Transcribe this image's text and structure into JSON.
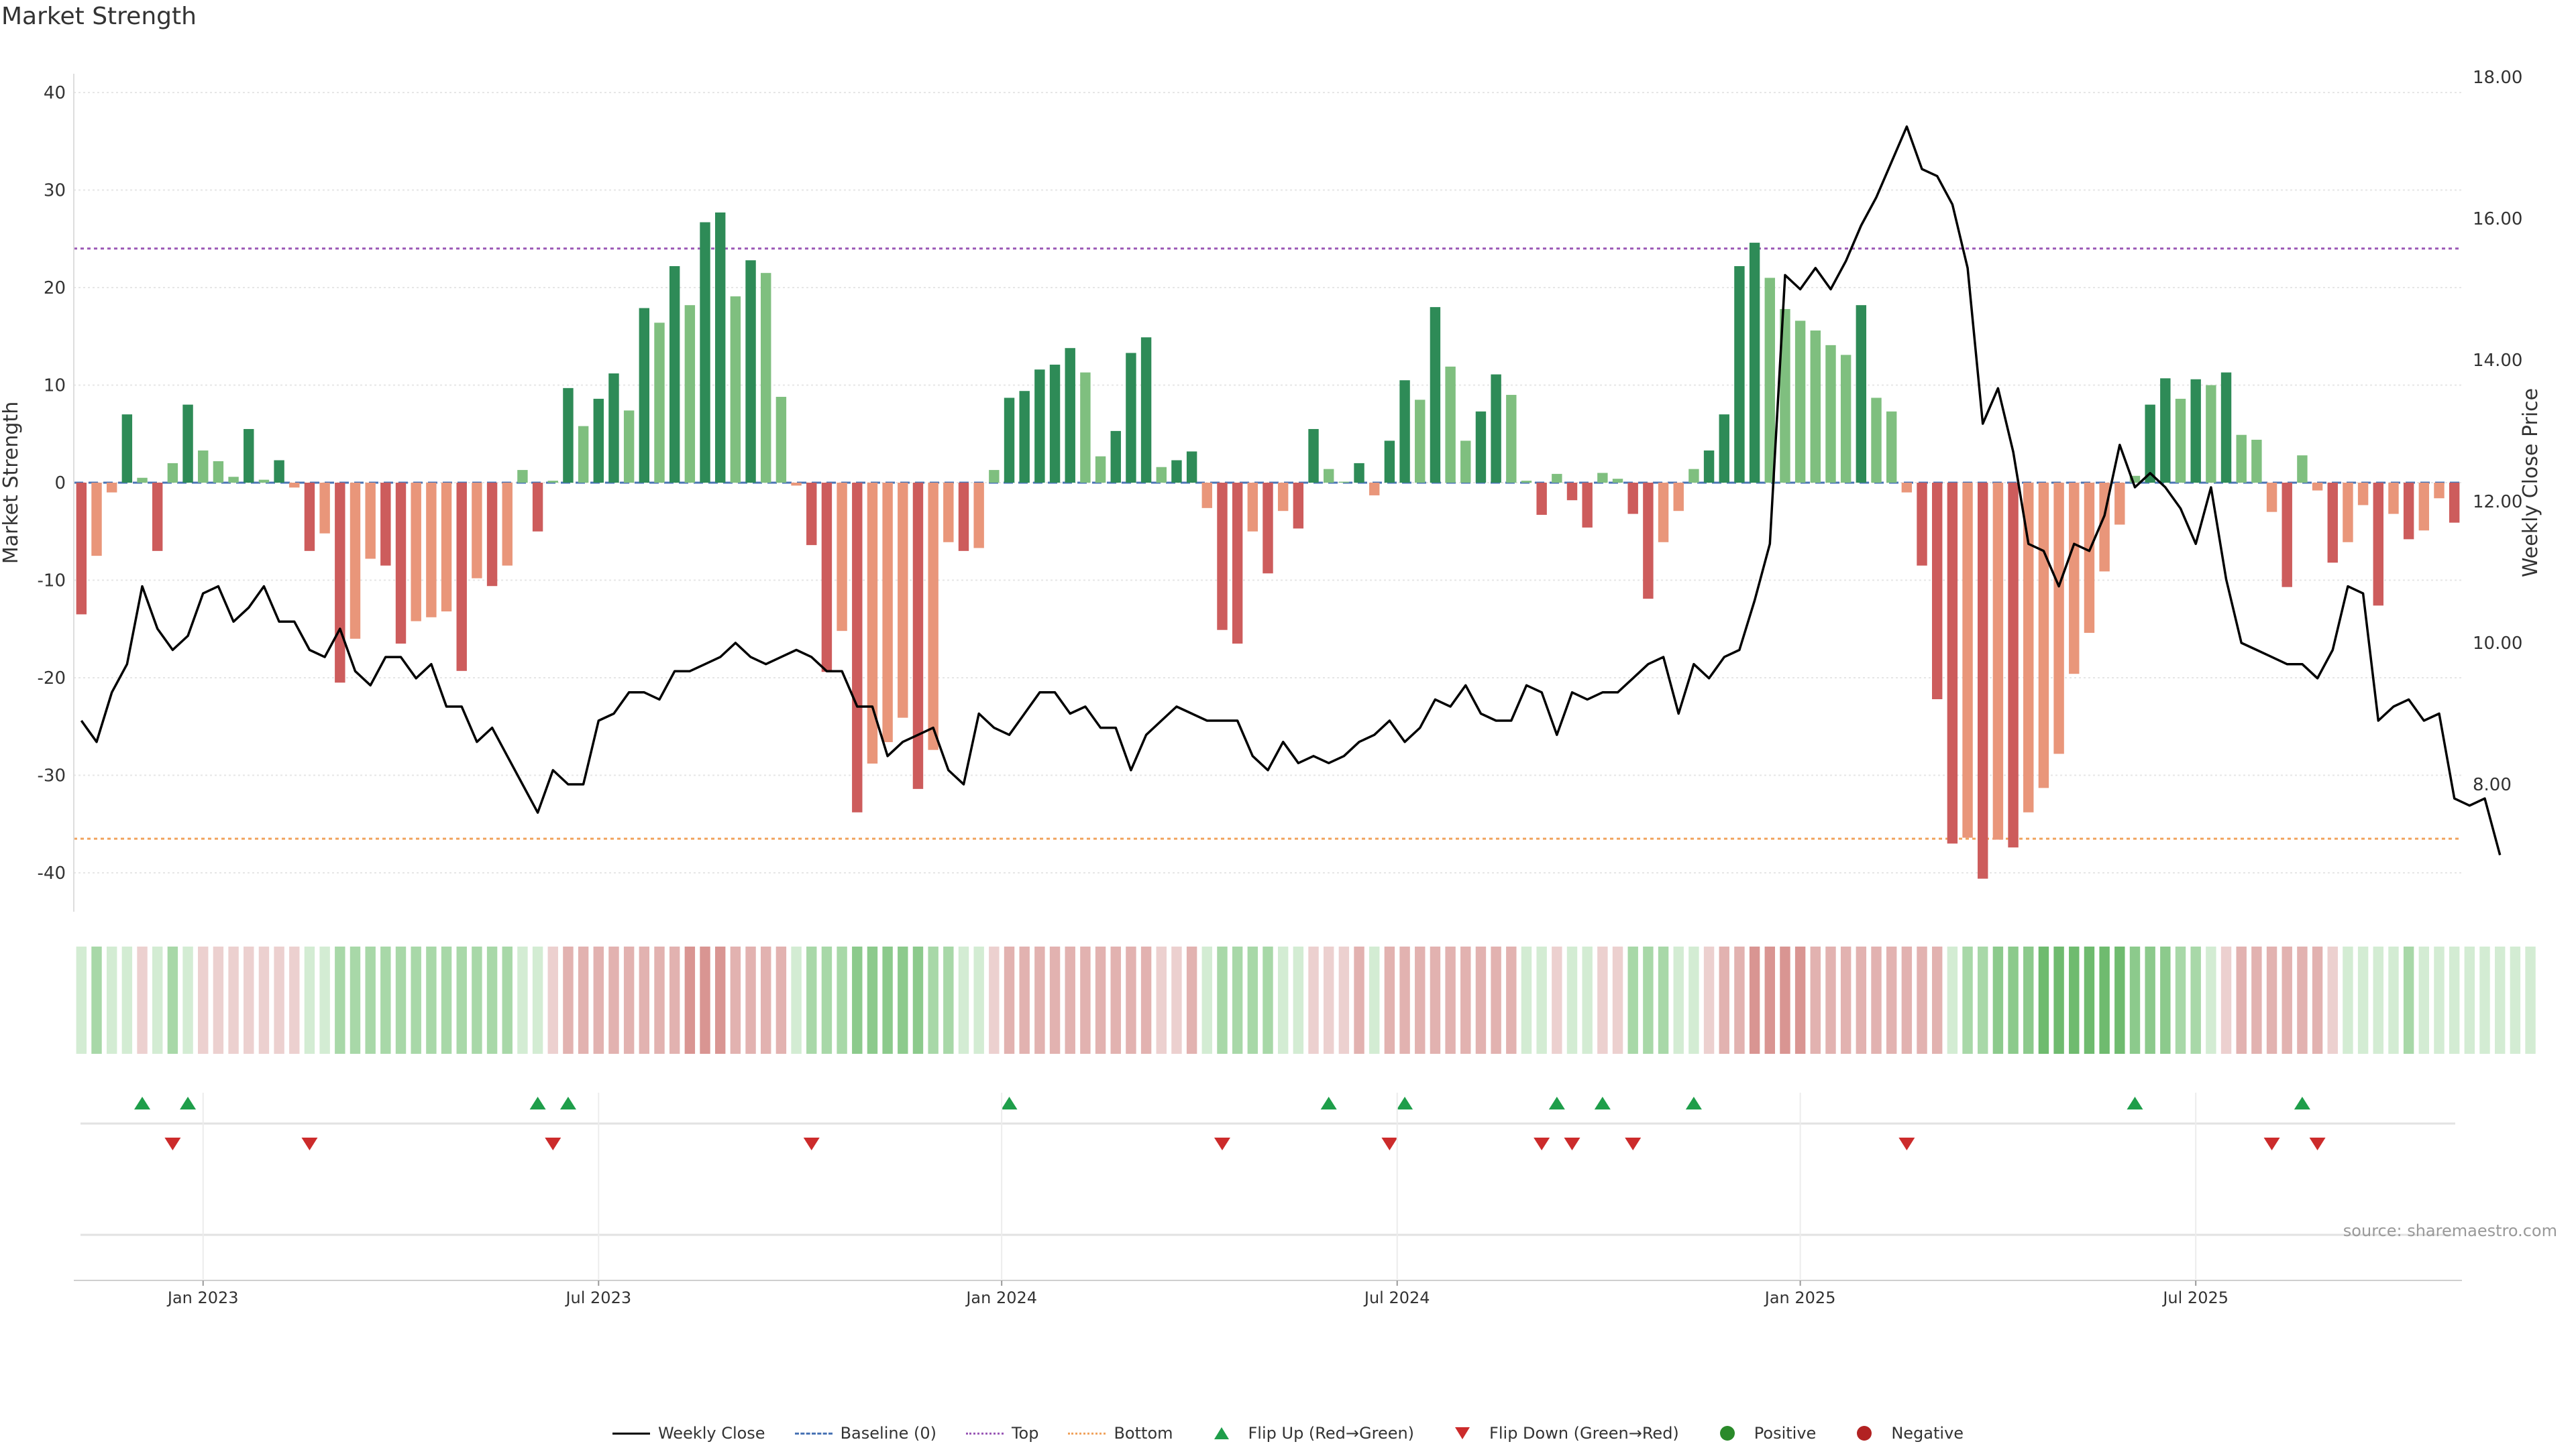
{
  "title": "Market Strength",
  "source": "source: sharemaestro.com",
  "colors": {
    "strong_green": "#2e8b57",
    "light_green": "#7fbf7f",
    "strong_red": "#cd5c5c",
    "light_red": "#e9967a",
    "line": "#000000",
    "top": "#9b59b6",
    "bottom": "#f0a35e",
    "baseline": "#4a74b5",
    "flip_up": "#1e9e4a",
    "flip_down": "#cc2b2b",
    "positive": "#2a8a2a",
    "negative": "#b22222"
  },
  "legend": [
    {
      "key": "weekly_close",
      "label": "Weekly Close"
    },
    {
      "key": "baseline",
      "label": "Baseline (0)"
    },
    {
      "key": "top",
      "label": "Top"
    },
    {
      "key": "bottom",
      "label": "Bottom"
    },
    {
      "key": "flip_up",
      "label": "Flip Up (Red→Green)"
    },
    {
      "key": "flip_down",
      "label": "Flip Down (Green→Red)"
    },
    {
      "key": "positive",
      "label": "Positive"
    },
    {
      "key": "negative",
      "label": "Negative"
    }
  ],
  "chart_data": {
    "type": "bar",
    "title": "Market Strength",
    "ylabel": "Market Strength",
    "y2label": "Weekly Close Price",
    "ylim": [
      -44,
      44
    ],
    "y2lim": [
      6.6,
      18.6
    ],
    "yticks": [
      40,
      30,
      20,
      10,
      0,
      -10,
      -20,
      -30,
      -40
    ],
    "y2ticks": [
      "18.00",
      "16.00",
      "14.00",
      "12.00",
      "10.00",
      "8.00"
    ],
    "top_line": 24,
    "bottom_line": -36.5,
    "x_tick_labels": [
      {
        "label": "Jan 2023",
        "index": 8.5
      },
      {
        "label": "Jul 2023",
        "index": 34.5
      },
      {
        "label": "Jan 2024",
        "index": 61
      },
      {
        "label": "Jul 2024",
        "index": 87
      },
      {
        "label": "Jan 2025",
        "index": 113.5
      },
      {
        "label": "Jul 2025",
        "index": 139.5
      }
    ],
    "strength": [
      -13.5,
      -7.5,
      -1,
      7,
      0.5,
      -7,
      2,
      8,
      3.3,
      2.2,
      0.6,
      5.5,
      0.3,
      2.3,
      -0.5,
      -7,
      -5.2,
      -20.5,
      -16,
      -7.8,
      -8.5,
      -16.5,
      -14.2,
      -13.8,
      -13.2,
      -19.3,
      -9.8,
      -10.6,
      -8.5,
      1.3,
      -5,
      0.2,
      9.7,
      5.8,
      8.6,
      11.2,
      7.4,
      17.9,
      16.4,
      22.2,
      18.2,
      26.7,
      27.7,
      19.1,
      22.8,
      21.5,
      8.8,
      -0.3,
      -6.4,
      -19.4,
      -15.2,
      -33.8,
      -28.8,
      -26.6,
      -24.1,
      -31.4,
      -27.4,
      -6.1,
      -7,
      -6.7,
      1.3,
      8.7,
      9.4,
      11.6,
      12.1,
      13.8,
      11.3,
      2.7,
      5.3,
      13.3,
      14.9,
      1.6,
      2.3,
      3.2,
      -2.6,
      -15.1,
      -16.5,
      -5,
      -9.3,
      -2.9,
      -4.7,
      5.5,
      1.4,
      0.1,
      2,
      -1.3,
      4.3,
      10.5,
      8.5,
      18,
      11.9,
      4.3,
      7.3,
      11.1,
      9,
      0.2,
      -3.3,
      0.9,
      -1.8,
      -4.6,
      1,
      0.4,
      -3.2,
      -11.9,
      -6.1,
      -2.9,
      1.4,
      3.3,
      7,
      22.2,
      24.6,
      21,
      17.8,
      16.6,
      15.6,
      14.1,
      13.1,
      18.2,
      8.7,
      7.3,
      -1,
      -8.5,
      -22.2,
      -37,
      -36.4,
      -40.6,
      -36.6,
      -37.4,
      -33.8,
      -31.3,
      -27.8,
      -19.6,
      -15.4,
      -9.1,
      -4.3,
      0.7,
      8,
      10.7,
      8.6,
      10.6,
      10,
      11.3,
      4.9,
      4.4,
      -3,
      -10.7,
      2.8,
      -0.8,
      -8.2,
      -6.1,
      -2.3,
      -12.6,
      -3.2,
      -5.8,
      -4.9,
      -1.6,
      -4.1
    ],
    "weekly_close": [
      8.9,
      8.6,
      9.3,
      9.7,
      10.8,
      10.2,
      9.9,
      10.1,
      10.7,
      10.8,
      10.3,
      10.5,
      10.8,
      10.3,
      10.3,
      9.9,
      9.8,
      10.2,
      9.6,
      9.4,
      9.8,
      9.8,
      9.5,
      9.7,
      9.1,
      9.1,
      8.6,
      8.8,
      8.4,
      8.0,
      7.6,
      8.2,
      8.0,
      8.0,
      8.9,
      9.0,
      9.3,
      9.3,
      9.2,
      9.6,
      9.6,
      9.7,
      9.8,
      10.0,
      9.8,
      9.7,
      9.8,
      9.9,
      9.8,
      9.6,
      9.6,
      9.1,
      9.1,
      8.4,
      8.6,
      8.7,
      8.8,
      8.2,
      8.0,
      9.0,
      8.8,
      8.7,
      9.0,
      9.3,
      9.3,
      9.0,
      9.1,
      8.8,
      8.8,
      8.2,
      8.7,
      8.9,
      9.1,
      9.0,
      8.9,
      8.9,
      8.9,
      8.4,
      8.2,
      8.6,
      8.3,
      8.4,
      8.3,
      8.4,
      8.6,
      8.7,
      8.9,
      8.6,
      8.8,
      9.2,
      9.1,
      9.4,
      9.0,
      8.9,
      8.9,
      9.4,
      9.3,
      8.7,
      9.3,
      9.2,
      9.3,
      9.3,
      9.5,
      9.7,
      9.8,
      9.0,
      9.7,
      9.5,
      9.8,
      9.9,
      10.6,
      11.4,
      15.2,
      15.0,
      15.3,
      15.0,
      15.4,
      15.9,
      16.3,
      16.8,
      17.3,
      16.7,
      16.6,
      16.2,
      15.3,
      13.1,
      13.6,
      12.7,
      11.4,
      11.3,
      10.8,
      11.4,
      11.3,
      11.8,
      12.8,
      12.2,
      12.4,
      12.2,
      11.9,
      11.4,
      12.2,
      10.9,
      10.0,
      9.9,
      9.8,
      9.7,
      9.7,
      9.5,
      9.9,
      10.8,
      10.7,
      8.9,
      9.1,
      9.2,
      8.9,
      9.0,
      7.8,
      7.7,
      7.8,
      7.0
    ],
    "heat_levels": [
      1,
      2,
      1,
      1,
      -1,
      1,
      2,
      1,
      -1,
      -1,
      -1,
      -1,
      -1,
      -1,
      -1,
      1,
      1,
      2,
      2,
      2,
      2,
      2,
      2,
      2,
      2,
      2,
      2,
      2,
      2,
      1,
      1,
      -1,
      -2,
      -2,
      -2,
      -2,
      -2,
      -2,
      -2,
      -2,
      -3,
      -3,
      -3,
      -2,
      -2,
      -2,
      -2,
      1,
      2,
      2,
      2,
      3,
      3,
      3,
      3,
      3,
      2,
      2,
      1,
      1,
      -1,
      -2,
      -2,
      -2,
      -2,
      -2,
      -2,
      -2,
      -2,
      -2,
      -2,
      -1,
      -1,
      -2,
      1,
      2,
      2,
      2,
      2,
      1,
      1,
      -1,
      -1,
      -1,
      -2,
      1,
      -2,
      -2,
      -2,
      -2,
      -2,
      -2,
      -2,
      -2,
      -2,
      1,
      1,
      -1,
      1,
      1,
      -1,
      -1,
      2,
      2,
      2,
      1,
      1,
      -1,
      -2,
      -2,
      -3,
      -3,
      -3,
      -3,
      -2,
      -2,
      -2,
      -2,
      -2,
      -2,
      -2,
      -2,
      -2,
      1,
      2,
      2,
      3,
      3,
      3,
      4,
      4,
      4,
      4,
      4,
      4,
      3,
      3,
      3,
      2,
      2,
      1,
      -1,
      -2,
      -2,
      -2,
      -2,
      -2,
      -2,
      -1,
      1,
      1,
      1,
      1,
      2,
      1,
      1,
      1,
      1,
      1,
      1,
      1,
      1
    ],
    "flip_up_indices": [
      4,
      7,
      30,
      32,
      61,
      82,
      87,
      97,
      100,
      106,
      135,
      146
    ],
    "flip_down_indices": [
      6,
      15,
      31,
      48,
      75,
      86,
      96,
      98,
      102,
      120,
      144,
      147
    ]
  }
}
